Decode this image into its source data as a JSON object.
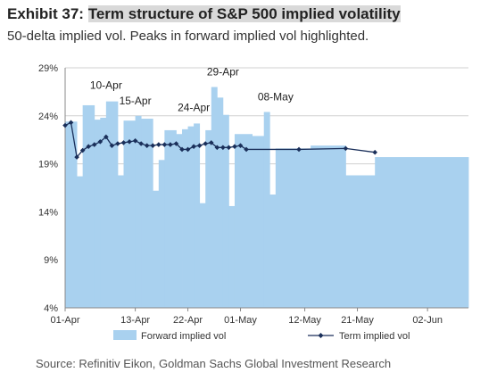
{
  "header": {
    "exhibit_label": "Exhibit 37:",
    "title": "Term structure of S&P 500 implied volatility",
    "subtitle": "50-delta implied vol. Peaks in forward implied vol highlighted."
  },
  "footer": {
    "source": "Source: Refinitiv Eikon, Goldman Sachs Global Investment Research"
  },
  "colors": {
    "forward": "#a9d1ef",
    "term": "#1a2f5a",
    "grid": "#d0d0d0",
    "axis": "#888888"
  },
  "chart_data": {
    "type": "bar",
    "y_ticks": [
      "29%",
      "24%",
      "19%",
      "14%",
      "9%",
      "4%"
    ],
    "x_tick_labels": [
      "01-Apr",
      "13-Apr",
      "22-Apr",
      "01-May",
      "12-May",
      "21-May",
      "02-Jun"
    ],
    "x_tick_dates": [
      "2020-04-01",
      "2020-04-13",
      "2020-04-22",
      "2020-05-01",
      "2020-05-12",
      "2020-05-21",
      "2020-06-02"
    ],
    "ylim": [
      0.04,
      0.29
    ],
    "xlim": [
      "2020-04-01",
      "2020-06-09"
    ],
    "grid": "horizontal",
    "legend_position": "bottom",
    "series": [
      {
        "name": "Forward implied vol",
        "kind": "area-step",
        "points": [
          {
            "start": "2020-04-01",
            "end": "2020-04-03",
            "value": 0.234
          },
          {
            "start": "2020-04-03",
            "end": "2020-04-04",
            "value": 0.177
          },
          {
            "start": "2020-04-04",
            "end": "2020-04-06",
            "value": 0.251
          },
          {
            "start": "2020-04-06",
            "end": "2020-04-07",
            "value": 0.236
          },
          {
            "start": "2020-04-07",
            "end": "2020-04-08",
            "value": 0.238
          },
          {
            "start": "2020-04-08",
            "end": "2020-04-10",
            "value": 0.255
          },
          {
            "start": "2020-04-10",
            "end": "2020-04-11",
            "value": 0.178
          },
          {
            "start": "2020-04-11",
            "end": "2020-04-13",
            "value": 0.235
          },
          {
            "start": "2020-04-13",
            "end": "2020-04-14",
            "value": 0.24
          },
          {
            "start": "2020-04-14",
            "end": "2020-04-16",
            "value": 0.237
          },
          {
            "start": "2020-04-16",
            "end": "2020-04-17",
            "value": 0.162
          },
          {
            "start": "2020-04-17",
            "end": "2020-04-18",
            "value": 0.194
          },
          {
            "start": "2020-04-18",
            "end": "2020-04-20",
            "value": 0.225
          },
          {
            "start": "2020-04-20",
            "end": "2020-04-21",
            "value": 0.221
          },
          {
            "start": "2020-04-21",
            "end": "2020-04-22",
            "value": 0.226
          },
          {
            "start": "2020-04-22",
            "end": "2020-04-23",
            "value": 0.229
          },
          {
            "start": "2020-04-23",
            "end": "2020-04-24",
            "value": 0.232
          },
          {
            "start": "2020-04-24",
            "end": "2020-04-25",
            "value": 0.149
          },
          {
            "start": "2020-04-25",
            "end": "2020-04-26",
            "value": 0.225
          },
          {
            "start": "2020-04-26",
            "end": "2020-04-27",
            "value": 0.27
          },
          {
            "start": "2020-04-27",
            "end": "2020-04-28",
            "value": 0.259
          },
          {
            "start": "2020-04-28",
            "end": "2020-04-29",
            "value": 0.241
          },
          {
            "start": "2020-04-29",
            "end": "2020-04-30",
            "value": 0.146
          },
          {
            "start": "2020-04-30",
            "end": "2020-05-03",
            "value": 0.221
          },
          {
            "start": "2020-05-03",
            "end": "2020-05-05",
            "value": 0.219
          },
          {
            "start": "2020-05-05",
            "end": "2020-05-06",
            "value": 0.244
          },
          {
            "start": "2020-05-06",
            "end": "2020-05-07",
            "value": 0.158
          },
          {
            "start": "2020-05-07",
            "end": "2020-05-13",
            "value": 0.206
          },
          {
            "start": "2020-05-13",
            "end": "2020-05-19",
            "value": 0.209
          },
          {
            "start": "2020-05-19",
            "end": "2020-05-24",
            "value": 0.178
          },
          {
            "start": "2020-05-24",
            "end": "2020-06-09",
            "value": 0.197
          }
        ]
      },
      {
        "name": "Term implied vol",
        "kind": "line-markers",
        "points": [
          {
            "x": "2020-04-01",
            "y": 0.23
          },
          {
            "x": "2020-04-02",
            "y": 0.233
          },
          {
            "x": "2020-04-03",
            "y": 0.197
          },
          {
            "x": "2020-04-04",
            "y": 0.204
          },
          {
            "x": "2020-04-05",
            "y": 0.208
          },
          {
            "x": "2020-04-06",
            "y": 0.21
          },
          {
            "x": "2020-04-07",
            "y": 0.213
          },
          {
            "x": "2020-04-08",
            "y": 0.218
          },
          {
            "x": "2020-04-09",
            "y": 0.209
          },
          {
            "x": "2020-04-10",
            "y": 0.211
          },
          {
            "x": "2020-04-11",
            "y": 0.212
          },
          {
            "x": "2020-04-12",
            "y": 0.213
          },
          {
            "x": "2020-04-13",
            "y": 0.214
          },
          {
            "x": "2020-04-14",
            "y": 0.211
          },
          {
            "x": "2020-04-15",
            "y": 0.209
          },
          {
            "x": "2020-04-16",
            "y": 0.209
          },
          {
            "x": "2020-04-17",
            "y": 0.21
          },
          {
            "x": "2020-04-18",
            "y": 0.21
          },
          {
            "x": "2020-04-19",
            "y": 0.21
          },
          {
            "x": "2020-04-20",
            "y": 0.211
          },
          {
            "x": "2020-04-21",
            "y": 0.205
          },
          {
            "x": "2020-04-22",
            "y": 0.205
          },
          {
            "x": "2020-04-23",
            "y": 0.208
          },
          {
            "x": "2020-04-24",
            "y": 0.209
          },
          {
            "x": "2020-04-25",
            "y": 0.211
          },
          {
            "x": "2020-04-26",
            "y": 0.212
          },
          {
            "x": "2020-04-27",
            "y": 0.207
          },
          {
            "x": "2020-04-28",
            "y": 0.207
          },
          {
            "x": "2020-04-29",
            "y": 0.207
          },
          {
            "x": "2020-04-30",
            "y": 0.208
          },
          {
            "x": "2020-05-01",
            "y": 0.209
          },
          {
            "x": "2020-05-02",
            "y": 0.205
          },
          {
            "x": "2020-05-11",
            "y": 0.205
          },
          {
            "x": "2020-05-19",
            "y": 0.206
          },
          {
            "x": "2020-05-24",
            "y": 0.202
          }
        ]
      }
    ],
    "annotations": [
      {
        "text": "10-Apr",
        "x": "2020-04-08",
        "y": 0.268
      },
      {
        "text": "15-Apr",
        "x": "2020-04-13",
        "y": 0.252
      },
      {
        "text": "24-Apr",
        "x": "2020-04-23",
        "y": 0.245
      },
      {
        "text": "29-Apr",
        "x": "2020-04-28",
        "y": 0.282
      },
      {
        "text": "08-May",
        "x": "2020-05-07",
        "y": 0.256
      }
    ]
  }
}
